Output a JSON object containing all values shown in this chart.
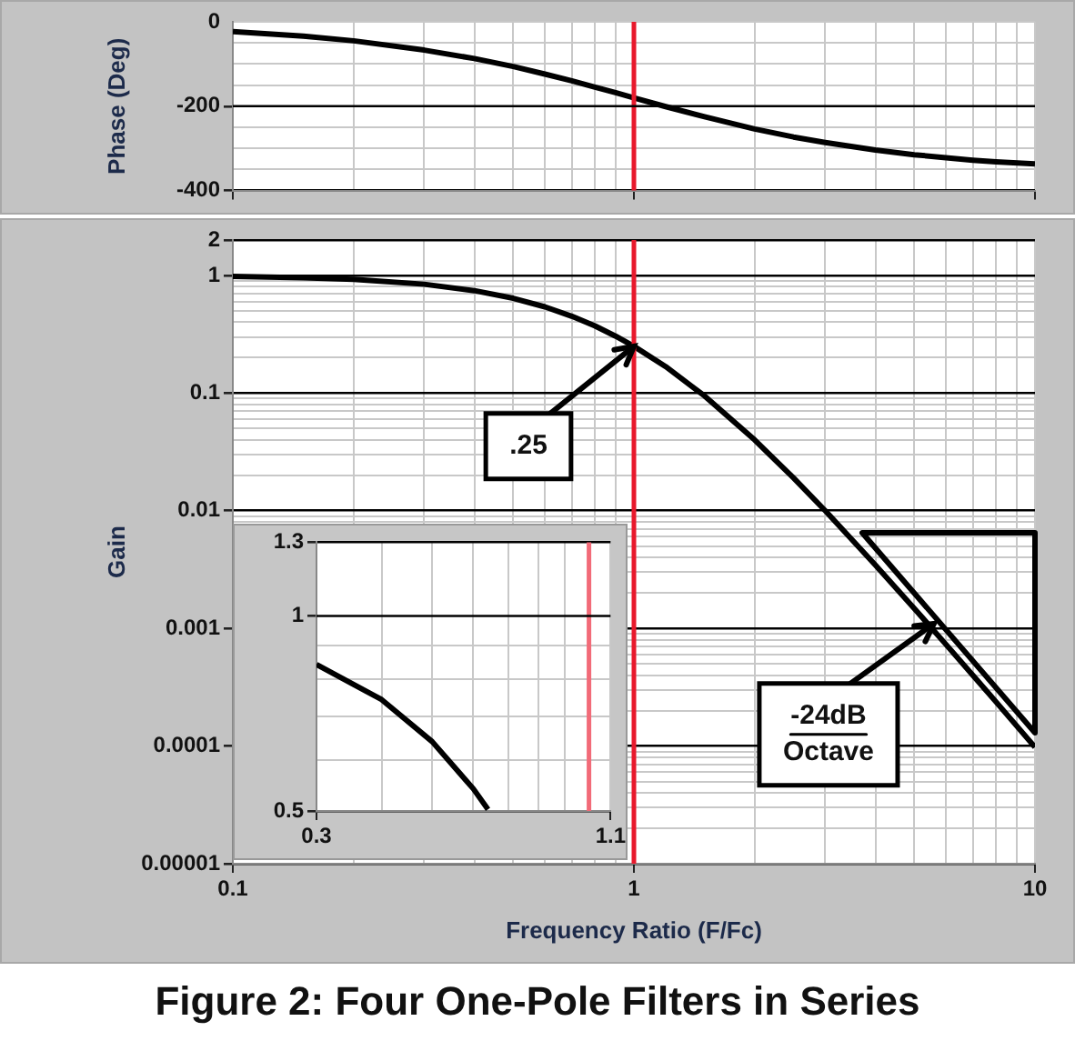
{
  "chart_data": [
    {
      "type": "line",
      "ylabel": "Phase (Deg)",
      "log": "x",
      "grid": true,
      "tick_labels": "y",
      "xlim": [
        0.1,
        10
      ],
      "ylim": [
        -400,
        0
      ],
      "xticks": [
        0.1,
        {
          "value": 0.2,
          "label": null
        },
        {
          "value": 0.3,
          "label": null
        },
        {
          "value": 0.4,
          "label": null
        },
        {
          "value": 0.5,
          "label": null
        },
        {
          "value": 0.6,
          "label": null
        },
        {
          "value": 0.7,
          "label": null
        },
        {
          "value": 0.8,
          "label": null
        },
        {
          "value": 0.9,
          "label": null
        },
        1,
        {
          "value": 2,
          "label": null
        },
        {
          "value": 3,
          "label": null
        },
        {
          "value": 4,
          "label": null
        },
        {
          "value": 5,
          "label": null
        },
        {
          "value": 6,
          "label": null
        },
        {
          "value": 7,
          "label": null
        },
        {
          "value": 8,
          "label": null
        },
        {
          "value": 9,
          "label": null
        },
        10
      ],
      "yticks": [
        -400,
        {
          "value": -350,
          "label": null
        },
        {
          "value": -300,
          "label": null
        },
        {
          "value": -250,
          "label": null
        },
        -200,
        {
          "value": -150,
          "label": null
        },
        {
          "value": -100,
          "label": null
        },
        {
          "value": -50,
          "label": null
        },
        0
      ],
      "x": [
        0.1,
        0.15,
        0.2,
        0.3,
        0.4,
        0.5,
        0.6,
        0.7,
        0.8,
        0.9,
        1,
        1.2,
        1.5,
        2,
        2.5,
        3,
        4,
        5,
        6,
        7,
        8,
        10
      ],
      "series": [
        {
          "color": "#000000",
          "values": [
            -23,
            -34,
            -45,
            -67,
            -87,
            -106,
            -124,
            -140,
            -155,
            -168,
            -180,
            -201,
            -225,
            -254,
            -273,
            -286,
            -304,
            -315,
            -322,
            -328,
            -332,
            -337
          ]
        }
      ],
      "ref_lines": [
        {
          "axis": "x",
          "value": 1,
          "color": "#e8192c"
        },
        {
          "axis": "y",
          "value": -200,
          "color": "#000000"
        }
      ]
    },
    {
      "type": "line",
      "title": "Figure 2: Four One-Pole Filters in Series",
      "xlabel": "Frequency Ratio (F/Fc)",
      "ylabel": "Gain",
      "log": "xy",
      "grid": true,
      "xlim": [
        0.1,
        10
      ],
      "ylim": [
        1e-05,
        2
      ],
      "xticks": [
        0.1,
        {
          "value": 0.2,
          "label": null
        },
        {
          "value": 0.3,
          "label": null
        },
        {
          "value": 0.4,
          "label": null
        },
        {
          "value": 0.5,
          "label": null
        },
        {
          "value": 0.6,
          "label": null
        },
        {
          "value": 0.7,
          "label": null
        },
        {
          "value": 0.8,
          "label": null
        },
        {
          "value": 0.9,
          "label": null
        },
        1,
        {
          "value": 2,
          "label": null
        },
        {
          "value": 3,
          "label": null
        },
        {
          "value": 4,
          "label": null
        },
        {
          "value": 5,
          "label": null
        },
        {
          "value": 6,
          "label": null
        },
        {
          "value": 7,
          "label": null
        },
        {
          "value": 8,
          "label": null
        },
        {
          "value": 9,
          "label": null
        },
        10
      ],
      "yticks": [
        {
          "value": 1e-05,
          "label": "0.00001"
        },
        {
          "value": 2e-05,
          "label": null
        },
        {
          "value": 3e-05,
          "label": null
        },
        {
          "value": 4e-05,
          "label": null
        },
        {
          "value": 5e-05,
          "label": null
        },
        {
          "value": 6e-05,
          "label": null
        },
        {
          "value": 7e-05,
          "label": null
        },
        {
          "value": 8e-05,
          "label": null
        },
        {
          "value": 9e-05,
          "label": null
        },
        0.0001,
        {
          "value": 0.0002,
          "label": null
        },
        {
          "value": 0.0003,
          "label": null
        },
        {
          "value": 0.0004,
          "label": null
        },
        {
          "value": 0.0005,
          "label": null
        },
        {
          "value": 0.0006,
          "label": null
        },
        {
          "value": 0.0007,
          "label": null
        },
        {
          "value": 0.0008,
          "label": null
        },
        {
          "value": 0.0009,
          "label": null
        },
        0.001,
        {
          "value": 0.002,
          "label": null
        },
        {
          "value": 0.003,
          "label": null
        },
        {
          "value": 0.004,
          "label": null
        },
        {
          "value": 0.005,
          "label": null
        },
        {
          "value": 0.006,
          "label": null
        },
        {
          "value": 0.007,
          "label": null
        },
        {
          "value": 0.008,
          "label": null
        },
        {
          "value": 0.009,
          "label": null
        },
        0.01,
        {
          "value": 0.02,
          "label": null
        },
        {
          "value": 0.03,
          "label": null
        },
        {
          "value": 0.04,
          "label": null
        },
        {
          "value": 0.05,
          "label": null
        },
        {
          "value": 0.06,
          "label": null
        },
        {
          "value": 0.07,
          "label": null
        },
        {
          "value": 0.08,
          "label": null
        },
        {
          "value": 0.09,
          "label": null
        },
        0.1,
        {
          "value": 0.2,
          "label": null
        },
        {
          "value": 0.3,
          "label": null
        },
        {
          "value": 0.4,
          "label": null
        },
        {
          "value": 0.5,
          "label": null
        },
        {
          "value": 0.6,
          "label": null
        },
        {
          "value": 0.7,
          "label": null
        },
        {
          "value": 0.8,
          "label": null
        },
        {
          "value": 0.9,
          "label": null
        },
        1,
        2
      ],
      "x": [
        0.1,
        0.15,
        0.2,
        0.3,
        0.4,
        0.5,
        0.6,
        0.7,
        0.8,
        0.9,
        1,
        1.2,
        1.5,
        2,
        2.5,
        3,
        4,
        5,
        6,
        7,
        8,
        10
      ],
      "series": [
        {
          "color": "#000000",
          "values": [
            0.98,
            0.956,
            0.925,
            0.842,
            0.743,
            0.64,
            0.541,
            0.45,
            0.372,
            0.305,
            0.25,
            0.168,
            0.0947,
            0.04,
            0.019,
            0.01,
            0.00346,
            0.00148,
            0.00073,
            0.0004,
            0.000237,
            9.8e-05
          ]
        }
      ],
      "ref_lines": [
        {
          "axis": "x",
          "value": 1,
          "color": "#e8192c"
        }
      ],
      "annotations": [
        {
          "text": ".25",
          "x": 1,
          "y": 0.25
        },
        {
          "text": "-24dB\nOctave",
          "x": 5.6,
          "y": 0.0011
        }
      ]
    },
    {
      "type": "line",
      "log": "xy",
      "grid": true,
      "xlim": [
        0.3,
        1.1
      ],
      "ylim": [
        0.5,
        1.3
      ],
      "xticks": [
        0.3,
        {
          "value": 0.4,
          "label": null
        },
        {
          "value": 0.5,
          "label": null
        },
        {
          "value": 0.6,
          "label": null
        },
        {
          "value": 0.7,
          "label": null
        },
        {
          "value": 0.8,
          "label": null
        },
        {
          "value": 0.9,
          "label": null
        },
        {
          "value": 1,
          "label": null
        },
        1.1
      ],
      "yticks": [
        0.5,
        {
          "value": 0.6,
          "label": null
        },
        {
          "value": 0.7,
          "label": null
        },
        {
          "value": 0.8,
          "label": null
        },
        {
          "value": 0.9,
          "label": null
        },
        1,
        1.3
      ],
      "x": [
        0.3,
        0.4,
        0.5,
        0.6,
        0.64
      ],
      "series": [
        {
          "color": "#000000",
          "values": [
            0.842,
            0.743,
            0.64,
            0.541,
            0.503
          ]
        }
      ],
      "ref_lines": [
        {
          "axis": "x",
          "value": 1,
          "color": "#f26b78"
        },
        {
          "axis": "y",
          "value": 1,
          "color": "#000000"
        }
      ]
    }
  ]
}
